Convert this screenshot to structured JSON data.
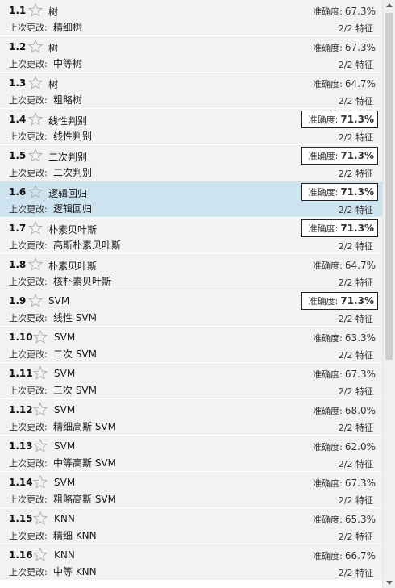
{
  "models": [
    {
      "num": "1.1",
      "name": "树",
      "change_label": "上次更改:",
      "change": "精细树",
      "acc_label": "准确度:",
      "accuracy": "67.3%",
      "features": "2/2 特征",
      "best": false,
      "selected": false
    },
    {
      "num": "1.2",
      "name": "树",
      "change_label": "上次更改:",
      "change": "中等树",
      "acc_label": "准确度:",
      "accuracy": "67.3%",
      "features": "2/2 特征",
      "best": false,
      "selected": false
    },
    {
      "num": "1.3",
      "name": "树",
      "change_label": "上次更改:",
      "change": "粗略树",
      "acc_label": "准确度:",
      "accuracy": "64.7%",
      "features": "2/2 特征",
      "best": false,
      "selected": false
    },
    {
      "num": "1.4",
      "name": "线性判别",
      "change_label": "上次更改:",
      "change": "线性判别",
      "acc_label": "准确度:",
      "accuracy": "71.3%",
      "features": "2/2 特征",
      "best": true,
      "selected": false
    },
    {
      "num": "1.5",
      "name": "二次判别",
      "change_label": "上次更改:",
      "change": "二次判别",
      "acc_label": "准确度:",
      "accuracy": "71.3%",
      "features": "2/2 特征",
      "best": true,
      "selected": false
    },
    {
      "num": "1.6",
      "name": "逻辑回归",
      "change_label": "上次更改:",
      "change": "逻辑回归",
      "acc_label": "准确度:",
      "accuracy": "71.3%",
      "features": "2/2 特征",
      "best": true,
      "selected": true
    },
    {
      "num": "1.7",
      "name": "朴素贝叶斯",
      "change_label": "上次更改:",
      "change": "高斯朴素贝叶斯",
      "acc_label": "准确度:",
      "accuracy": "71.3%",
      "features": "2/2 特征",
      "best": true,
      "selected": false
    },
    {
      "num": "1.8",
      "name": "朴素贝叶斯",
      "change_label": "上次更改:",
      "change": "核朴素贝叶斯",
      "acc_label": "准确度:",
      "accuracy": "64.7%",
      "features": "2/2 特征",
      "best": false,
      "selected": false
    },
    {
      "num": "1.9",
      "name": "SVM",
      "change_label": "上次更改:",
      "change": "线性 SVM",
      "acc_label": "准确度:",
      "accuracy": "71.3%",
      "features": "2/2 特征",
      "best": true,
      "selected": false
    },
    {
      "num": "1.10",
      "name": "SVM",
      "change_label": "上次更改:",
      "change": "二次 SVM",
      "acc_label": "准确度:",
      "accuracy": "63.3%",
      "features": "2/2 特征",
      "best": false,
      "selected": false
    },
    {
      "num": "1.11",
      "name": "SVM",
      "change_label": "上次更改:",
      "change": "三次 SVM",
      "acc_label": "准确度:",
      "accuracy": "67.3%",
      "features": "2/2 特征",
      "best": false,
      "selected": false
    },
    {
      "num": "1.12",
      "name": "SVM",
      "change_label": "上次更改:",
      "change": "精细高斯 SVM",
      "acc_label": "准确度:",
      "accuracy": "68.0%",
      "features": "2/2 特征",
      "best": false,
      "selected": false
    },
    {
      "num": "1.13",
      "name": "SVM",
      "change_label": "上次更改:",
      "change": "中等高斯 SVM",
      "acc_label": "准确度:",
      "accuracy": "62.0%",
      "features": "2/2 特征",
      "best": false,
      "selected": false
    },
    {
      "num": "1.14",
      "name": "SVM",
      "change_label": "上次更改:",
      "change": "粗略高斯 SVM",
      "acc_label": "准确度:",
      "accuracy": "67.3%",
      "features": "2/2 特征",
      "best": false,
      "selected": false
    },
    {
      "num": "1.15",
      "name": "KNN",
      "change_label": "上次更改:",
      "change": "精细 KNN",
      "acc_label": "准确度:",
      "accuracy": "65.3%",
      "features": "2/2 特征",
      "best": false,
      "selected": false
    },
    {
      "num": "1.16",
      "name": "KNN",
      "change_label": "上次更改:",
      "change": "中等 KNN",
      "acc_label": "准确度:",
      "accuracy": "66.7%",
      "features": "2/2 特征",
      "best": false,
      "selected": false
    }
  ],
  "icons": {
    "favorite": "star-outline-icon",
    "scroll_up": "triangle-up-icon",
    "scroll_down": "triangle-down-icon"
  },
  "colors": {
    "row_bg": "#f2f2f2",
    "selected_bg": "#cde3f0",
    "star": "#b0b0b0",
    "best_border": "#222222"
  }
}
